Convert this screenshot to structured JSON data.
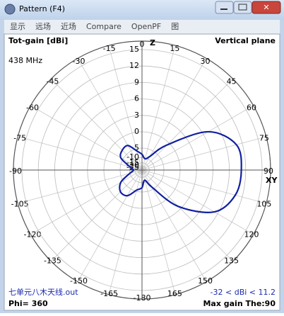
{
  "window": {
    "title": "Pattern   (F4)",
    "menu": [
      "显示",
      "远场",
      "近场",
      "Compare",
      "OpenPF",
      "图"
    ]
  },
  "chart_data": {
    "type": "polar",
    "title": "Tot-gain [dBi]",
    "subtitle": "Vertical plane",
    "frequency": "438 MHz",
    "top_axis_label": "Z",
    "side_axis_label": "XY",
    "thetaticks": [
      0,
      15,
      30,
      45,
      60,
      75,
      90,
      105,
      120,
      135,
      150,
      165,
      -15,
      -30,
      -45,
      -60,
      -75,
      -90,
      -105,
      -120,
      -135,
      -150,
      -165,
      -180
    ],
    "rticks": [
      15,
      12,
      9,
      6,
      3,
      0,
      -5,
      -10,
      -15,
      -20,
      -25
    ],
    "series": [
      {
        "color": "#1020a0",
        "x": [
          0,
          15,
          30,
          45,
          60,
          75,
          90,
          105,
          120,
          135,
          150,
          165,
          180,
          -165,
          -150,
          -135,
          -120,
          -105,
          -90,
          -75,
          -60,
          -45,
          -30,
          -15
        ],
        "values": [
          -8,
          -10.7,
          -8,
          -0.7,
          7,
          10.9,
          11.2,
          10.7,
          8.3,
          2.4,
          -6,
          -11.6,
          -7,
          -5.5,
          -2.3,
          -2,
          -4,
          -10,
          -13.5,
          -10,
          -4,
          -2.8,
          -2.7,
          -6
        ]
      }
    ],
    "file_name": "七单元八木天线.out",
    "range_text": "-32 < dBi < 11.2",
    "phi_text": "Phi= 360",
    "max_gain_text": "Max gain The:90"
  }
}
